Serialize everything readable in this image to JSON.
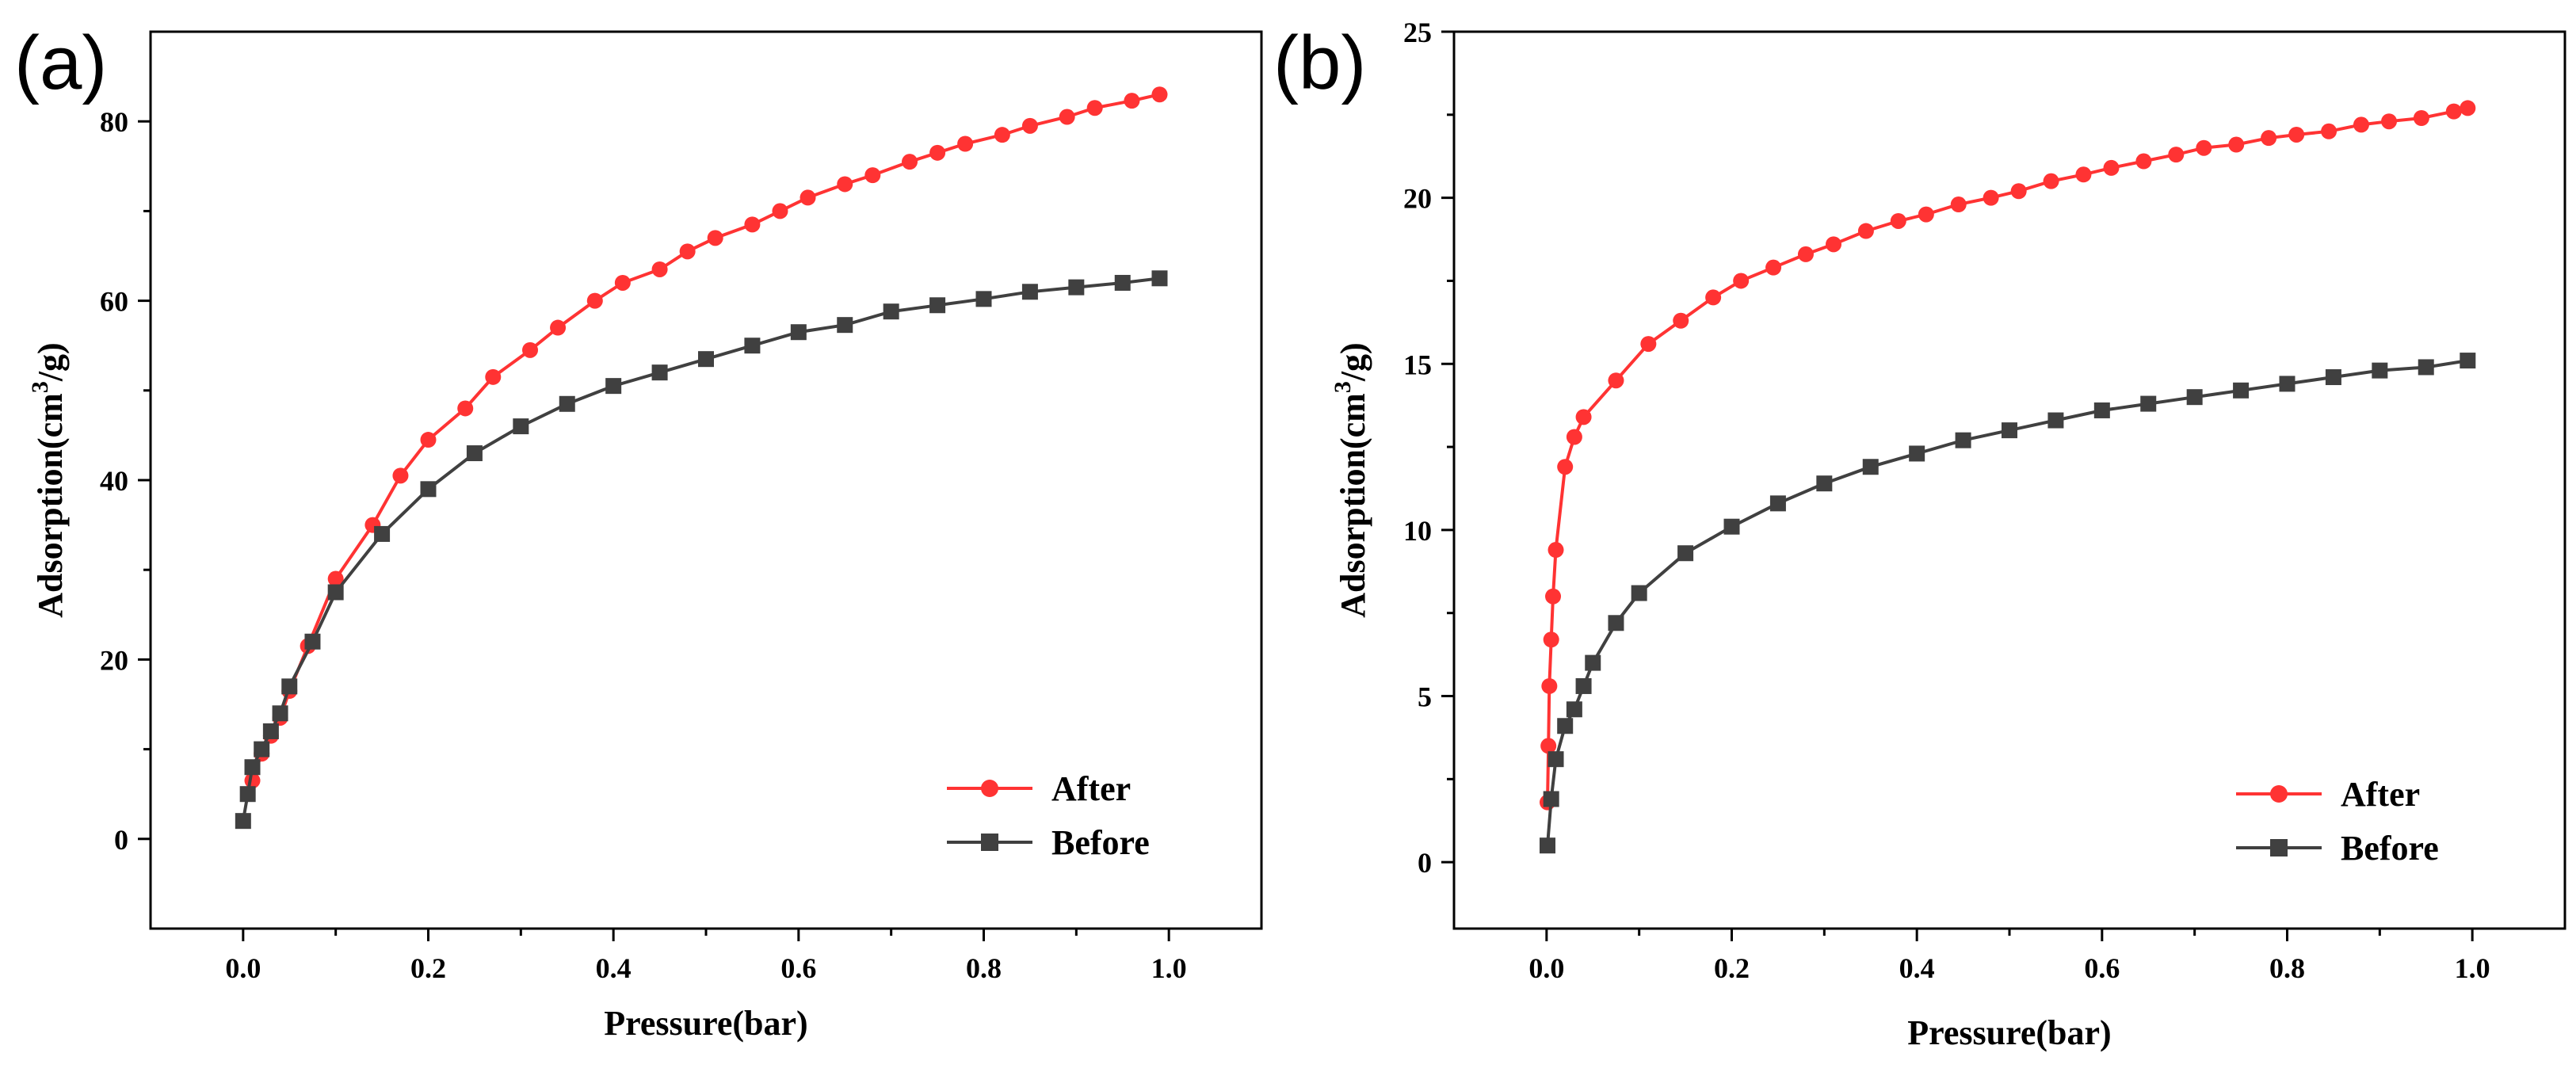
{
  "chart_data": [
    {
      "type": "line",
      "panel_label": "(a)",
      "title": "",
      "xlabel": "Pressure(bar)",
      "ylabel_main": "Adsorption(cm",
      "ylabel_sup": "3",
      "ylabel_tail": "/g)",
      "xlim": [
        -0.1,
        1.1
      ],
      "ylim": [
        -10,
        90
      ],
      "xticks": [
        0.0,
        0.2,
        0.4,
        0.6,
        0.8,
        1.0
      ],
      "xtick_labels": [
        "0.0",
        "0.2",
        "0.4",
        "0.6",
        "0.8",
        "1.0"
      ],
      "yticks": [
        0,
        20,
        40,
        60,
        80
      ],
      "ytick_labels": [
        "0",
        "20",
        "40",
        "60",
        "80"
      ],
      "grid": false,
      "legend_position": "bottom-right",
      "series": [
        {
          "name": "After",
          "color": "#ff3333",
          "marker": "circle",
          "x": [
            0.01,
            0.02,
            0.03,
            0.04,
            0.05,
            0.07,
            0.1,
            0.14,
            0.17,
            0.2,
            0.24,
            0.27,
            0.31,
            0.34,
            0.38,
            0.41,
            0.45,
            0.48,
            0.51,
            0.55,
            0.58,
            0.61,
            0.65,
            0.68,
            0.72,
            0.75,
            0.78,
            0.82,
            0.85,
            0.89,
            0.92,
            0.96,
            0.99
          ],
          "y": [
            6.5,
            9.5,
            11.5,
            13.5,
            16.5,
            21.5,
            29,
            35,
            40.5,
            44.5,
            48,
            51.5,
            54.5,
            57,
            60,
            62,
            63.5,
            65.5,
            67,
            68.5,
            70,
            71.5,
            73,
            74,
            75.5,
            76.5,
            77.5,
            78.5,
            79.5,
            80.5,
            81.5,
            82.3,
            83
          ]
        },
        {
          "name": "Before",
          "color": "#404040",
          "marker": "square",
          "x": [
            0.0,
            0.005,
            0.01,
            0.02,
            0.03,
            0.04,
            0.05,
            0.075,
            0.1,
            0.15,
            0.2,
            0.25,
            0.3,
            0.35,
            0.4,
            0.45,
            0.5,
            0.55,
            0.6,
            0.65,
            0.7,
            0.75,
            0.8,
            0.85,
            0.9,
            0.95,
            0.99
          ],
          "y": [
            2,
            5,
            8,
            10,
            12,
            14,
            17,
            22,
            27.5,
            34,
            39,
            43,
            46,
            48.5,
            50.5,
            52,
            53.5,
            55,
            56.5,
            57.3,
            58.8,
            59.5,
            60.2,
            61,
            61.5,
            62,
            62.5
          ]
        }
      ]
    },
    {
      "type": "line",
      "panel_label": "(b)",
      "title": "",
      "xlabel": "Pressure(bar)",
      "ylabel_main": "Adsorption(cm",
      "ylabel_sup": "3",
      "ylabel_tail": "/g)",
      "xlim": [
        -0.1,
        1.1
      ],
      "ylim": [
        -2,
        25
      ],
      "xticks": [
        0.0,
        0.2,
        0.4,
        0.6,
        0.8,
        1.0
      ],
      "xtick_labels": [
        "0.0",
        "0.2",
        "0.4",
        "0.6",
        "0.8",
        "1.0"
      ],
      "yticks": [
        0,
        5,
        10,
        15,
        20,
        25
      ],
      "ytick_labels": [
        "0",
        "5",
        "10",
        "15",
        "20",
        "25"
      ],
      "grid": false,
      "legend_position": "bottom-right",
      "series": [
        {
          "name": "After",
          "color": "#ff3333",
          "marker": "circle",
          "x": [
            0.001,
            0.002,
            0.003,
            0.005,
            0.007,
            0.01,
            0.02,
            0.03,
            0.04,
            0.075,
            0.11,
            0.145,
            0.18,
            0.21,
            0.245,
            0.28,
            0.31,
            0.345,
            0.38,
            0.41,
            0.445,
            0.48,
            0.51,
            0.545,
            0.58,
            0.61,
            0.645,
            0.68,
            0.71,
            0.745,
            0.78,
            0.81,
            0.845,
            0.88,
            0.91,
            0.945,
            0.98,
            0.995
          ],
          "y": [
            1.8,
            3.5,
            5.3,
            6.7,
            8.0,
            9.4,
            11.9,
            12.8,
            13.4,
            14.5,
            15.6,
            16.3,
            17.0,
            17.5,
            17.9,
            18.3,
            18.6,
            19.0,
            19.3,
            19.5,
            19.8,
            20.0,
            20.2,
            20.5,
            20.7,
            20.9,
            21.1,
            21.3,
            21.5,
            21.6,
            21.8,
            21.9,
            22.0,
            22.2,
            22.3,
            22.4,
            22.6,
            22.7
          ]
        },
        {
          "name": "Before",
          "color": "#404040",
          "marker": "square",
          "x": [
            0.001,
            0.005,
            0.01,
            0.02,
            0.03,
            0.04,
            0.05,
            0.075,
            0.1,
            0.15,
            0.2,
            0.25,
            0.3,
            0.35,
            0.4,
            0.45,
            0.5,
            0.55,
            0.6,
            0.65,
            0.7,
            0.75,
            0.8,
            0.85,
            0.9,
            0.95,
            0.995
          ],
          "y": [
            0.5,
            1.9,
            3.1,
            4.1,
            4.6,
            5.3,
            6.0,
            7.2,
            8.1,
            9.3,
            10.1,
            10.8,
            11.4,
            11.9,
            12.3,
            12.7,
            13.0,
            13.3,
            13.6,
            13.8,
            14.0,
            14.2,
            14.4,
            14.6,
            14.8,
            14.9,
            15.1
          ]
        }
      ]
    }
  ]
}
